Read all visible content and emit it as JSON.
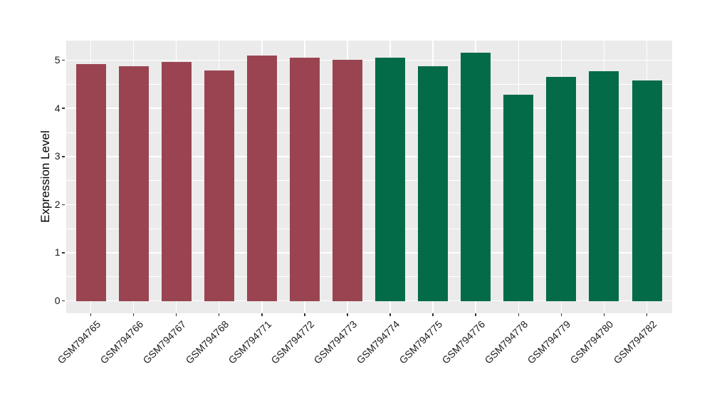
{
  "chart_data": {
    "type": "bar",
    "title": "",
    "xlabel": "",
    "ylabel": "Expression Level",
    "categories": [
      "GSM794765",
      "GSM794766",
      "GSM794767",
      "GSM794768",
      "GSM794771",
      "GSM794772",
      "GSM794773",
      "GSM794774",
      "GSM794775",
      "GSM794776",
      "GSM794778",
      "GSM794779",
      "GSM794780",
      "GSM794782"
    ],
    "values": [
      4.92,
      4.88,
      4.97,
      4.79,
      5.09,
      5.05,
      5.01,
      5.05,
      4.87,
      5.16,
      4.29,
      4.66,
      4.77,
      4.58
    ],
    "bar_colors": [
      "#9A4452",
      "#9A4452",
      "#9A4452",
      "#9A4452",
      "#9A4452",
      "#9A4452",
      "#9A4452",
      "#046B49",
      "#046B49",
      "#046B49",
      "#046B49",
      "#046B49",
      "#046B49",
      "#046B49"
    ],
    "yticks": [
      "0",
      "1",
      "2",
      "3",
      "4",
      "5"
    ],
    "minor_yticks": [
      0.5,
      1.5,
      2.5,
      3.5,
      4.5
    ],
    "ylim": [
      -0.2575,
      5.4075
    ],
    "grid": "on",
    "legend": "none",
    "panel_bg": "#EBEBEB",
    "grid_color": "#FFFFFF"
  }
}
